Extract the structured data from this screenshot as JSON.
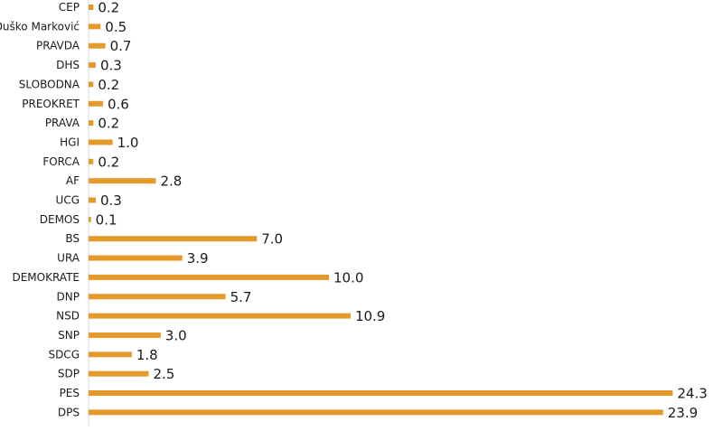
{
  "chart_data": {
    "type": "bar",
    "orientation": "horizontal",
    "title": "",
    "xlabel": "",
    "ylabel": "",
    "xlim": [
      0,
      25
    ],
    "grid": false,
    "legend": "none",
    "bar_color": "#E39A2B",
    "categories": [
      "CEP",
      "Duško Marković",
      "PRAVDA",
      "DHS",
      "SLOBODNA",
      "PREOKRET",
      "PRAVA",
      "HGI",
      "FORCA",
      "AF",
      "UCG",
      "DEMOS",
      "BS",
      "URA",
      "DEMOKRATE",
      "DNP",
      "NSD",
      "SNP",
      "SDCG",
      "SDP",
      "PES",
      "DPS"
    ],
    "values": [
      0.2,
      0.5,
      0.7,
      0.3,
      0.2,
      0.6,
      0.2,
      1.0,
      0.2,
      2.8,
      0.3,
      0.1,
      7.0,
      3.9,
      10.0,
      5.7,
      10.9,
      3.0,
      1.8,
      2.5,
      24.3,
      23.9
    ],
    "value_labels": [
      "0.2",
      "0.5",
      "0.7",
      "0.3",
      "0.2",
      "0.6",
      "0.2",
      "1.0",
      "0.2",
      "2.8",
      "0.3",
      "0.1",
      "7.0",
      "3.9",
      "10.0",
      "5.7",
      "10.9",
      "3.0",
      "1.8",
      "2.5",
      "24.3",
      "23.9"
    ]
  }
}
